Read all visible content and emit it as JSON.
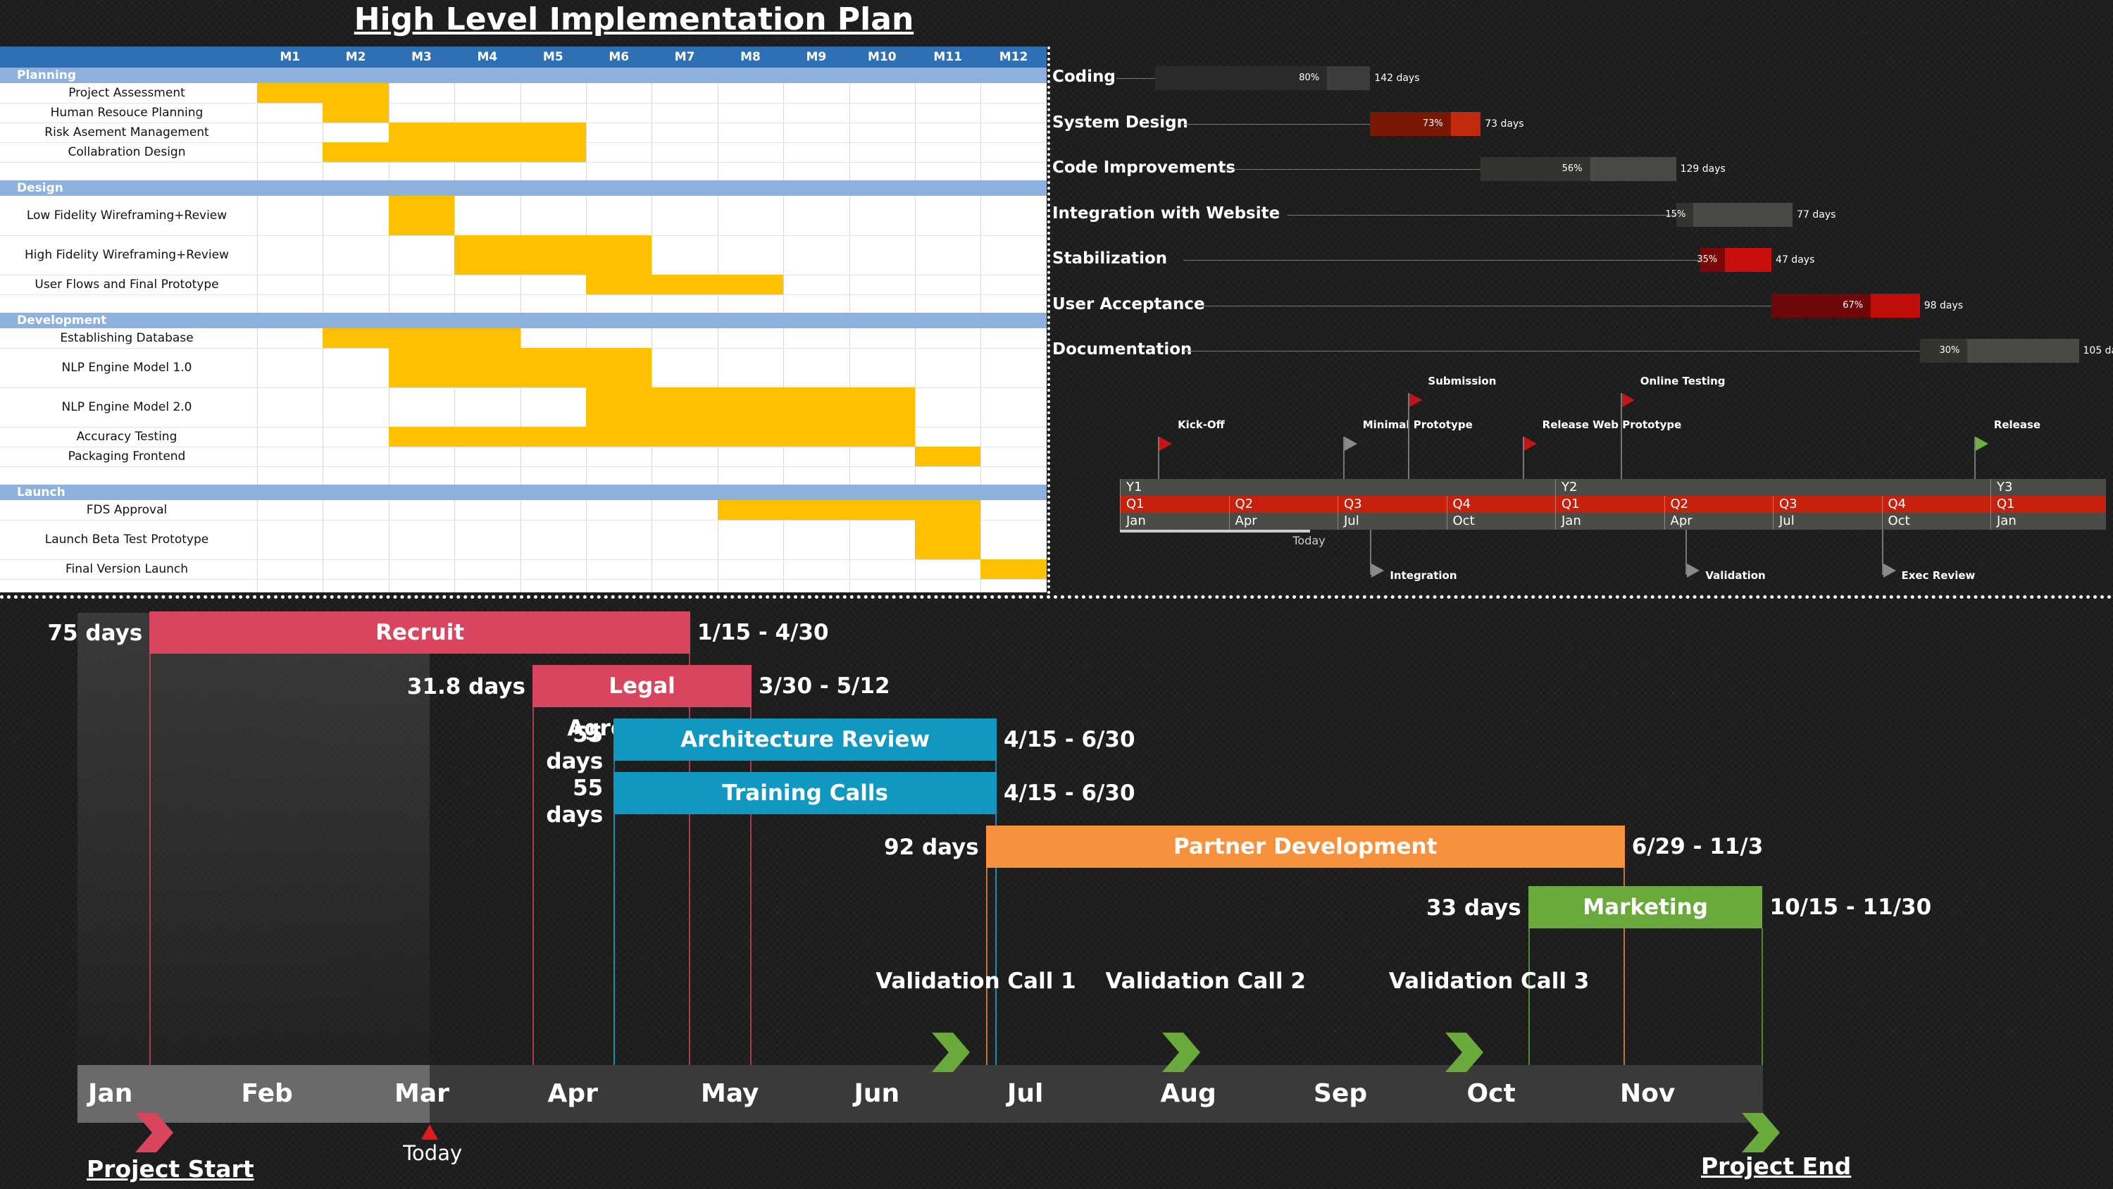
{
  "title": "High Level Implementation Plan",
  "chart_data": [
    {
      "type": "table",
      "chart": "monthly-gantt-table",
      "months": [
        "M1",
        "M2",
        "M3",
        "M4",
        "M5",
        "M6",
        "M7",
        "M8",
        "M9",
        "M10",
        "M11",
        "M12"
      ],
      "sections": [
        {
          "name": "Planning",
          "tasks": [
            {
              "name": "Project Assessment",
              "start": 1,
              "end": 2
            },
            {
              "name": "Human Resouce Planning",
              "start": 2,
              "end": 2
            },
            {
              "name": "Risk Asement Management",
              "start": 3,
              "end": 5
            },
            {
              "name": "Collabration Design",
              "start": 2,
              "end": 5
            }
          ]
        },
        {
          "name": "Design",
          "tasks": [
            {
              "name": "Low Fidelity Wireframing+Review",
              "start": 3,
              "end": 3
            },
            {
              "name": "High Fidelity Wireframing+Review",
              "start": 4,
              "end": 6
            },
            {
              "name": "User Flows and Final Prototype",
              "start": 6,
              "end": 8
            }
          ]
        },
        {
          "name": "Development",
          "tasks": [
            {
              "name": "Establishing Database",
              "start": 2,
              "end": 4
            },
            {
              "name": "NLP Engine Model 1.0",
              "start": 3,
              "end": 6
            },
            {
              "name": "NLP Engine Model 2.0",
              "start": 6,
              "end": 10
            },
            {
              "name": "Accuracy Testing",
              "start": 3,
              "end": 10
            },
            {
              "name": "Packaging Frontend",
              "start": 11,
              "end": 11
            }
          ]
        },
        {
          "name": "Launch",
          "tasks": [
            {
              "name": "FDS Approval",
              "start": 8,
              "end": 11
            },
            {
              "name": "Launch Beta Test Prototype",
              "start": 11,
              "end": 11
            },
            {
              "name": "Final Version Launch",
              "start": 12,
              "end": 12
            }
          ]
        }
      ]
    },
    {
      "type": "bar",
      "chart": "task-progress",
      "tasks": [
        {
          "name": "Coding",
          "percent": 80,
          "percent_label": "80%",
          "days_label": "142 days",
          "start": 0,
          "days": 142,
          "color": "#3d3d3d",
          "done_color": "#2a2a2a"
        },
        {
          "name": "System Design",
          "percent": 73,
          "percent_label": "73%",
          "days_label": "73 days",
          "start": 142,
          "days": 73,
          "color": "#c22a0e",
          "done_color": "#7a1806"
        },
        {
          "name": "Code Improvements",
          "percent": 56,
          "percent_label": "56%",
          "days_label": "129 days",
          "start": 215,
          "days": 129,
          "color": "#4a4a44",
          "done_color": "#33332f"
        },
        {
          "name": "Integration with Website",
          "percent": 15,
          "percent_label": "15%",
          "days_label": "77 days",
          "start": 344,
          "days": 77,
          "color": "#4a4a44",
          "done_color": "#33332f"
        },
        {
          "name": "Stabilization",
          "percent": 35,
          "percent_label": "35%",
          "days_label": "47 days",
          "start": 360,
          "days": 47,
          "color": "#c80e0e",
          "done_color": "#7a0808"
        },
        {
          "name": "User Acceptance",
          "percent": 67,
          "percent_label": "67%",
          "days_label": "98 days",
          "start": 407,
          "days": 98,
          "color": "#c20d0d",
          "done_color": "#6e0707"
        },
        {
          "name": "Documentation",
          "percent": 30,
          "percent_label": "30%",
          "days_label": "105 days",
          "start": 505,
          "days": 105,
          "color": "#4a4a44",
          "done_color": "#33332f"
        }
      ]
    },
    {
      "type": "table",
      "chart": "milestone-timeline",
      "years": [
        {
          "label": "Y1",
          "start": 0,
          "span": 4
        },
        {
          "label": "Y2",
          "start": 4,
          "span": 4
        },
        {
          "label": "Y3",
          "start": 8,
          "span": 1
        }
      ],
      "quarters": [
        "Q1",
        "Q2",
        "Q3",
        "Q4",
        "Q1",
        "Q2",
        "Q3",
        "Q4",
        "Q1"
      ],
      "months": [
        "Jan",
        "Apr",
        "Jul",
        "Oct",
        "Jan",
        "Apr",
        "Jul",
        "Oct",
        "Jan"
      ],
      "today_label": "Today",
      "today_q": 1.75,
      "milestones_above": [
        {
          "label": "Kick-Off",
          "q": 0.35,
          "height": "low",
          "color": "#c21515"
        },
        {
          "label": "Minimal Prototype",
          "q": 2.05,
          "height": "low",
          "color": "#8a8a8a"
        },
        {
          "label": "Submission",
          "q": 2.65,
          "height": "high",
          "color": "#c21515"
        },
        {
          "label": "Release Web Prototype",
          "q": 3.7,
          "height": "low",
          "color": "#c21515"
        },
        {
          "label": "Online Testing",
          "q": 4.6,
          "height": "high",
          "color": "#c21515"
        },
        {
          "label": "Release",
          "q": 7.85,
          "height": "low",
          "color": "#6db33f"
        }
      ],
      "milestones_below": [
        {
          "label": "Integration",
          "q": 2.3
        },
        {
          "label": "Validation",
          "q": 5.2
        },
        {
          "label": "Exec Review",
          "q": 7.0
        }
      ]
    },
    {
      "type": "bar",
      "chart": "project-gantt",
      "months": [
        "Jan",
        "Feb",
        "Mar",
        "Apr",
        "May",
        "Jun",
        "Jul",
        "Aug",
        "Sep",
        "Oct",
        "Nov"
      ],
      "tasks": [
        {
          "name": "Recruit",
          "start": 0.47,
          "end": 4.0,
          "days_label": "75 days",
          "dates": "1/15 - 4/30",
          "color": "#d9455f"
        },
        {
          "name": "Legal Agreements",
          "start": 2.97,
          "end": 4.4,
          "days_label": "31.8 days",
          "dates": "3/30 - 5/12",
          "color": "#d9455f"
        },
        {
          "name": "Architecture Review",
          "start": 3.5,
          "end": 6.0,
          "days_label": "55 days",
          "dates": "4/15 - 6/30",
          "color": "#1198c0"
        },
        {
          "name": "Training Calls",
          "start": 3.5,
          "end": 6.0,
          "days_label": "55 days",
          "dates": "4/15 - 6/30",
          "color": "#1198c0"
        },
        {
          "name": "Partner Development",
          "start": 5.93,
          "end": 10.1,
          "days_label": "92 days",
          "dates": "6/29 - 11/3",
          "color": "#f7913d"
        },
        {
          "name": "Marketing",
          "start": 9.47,
          "end": 11.0,
          "days_label": "33 days",
          "dates": "10/15 - 11/30",
          "color": "#6aaa3c"
        }
      ],
      "validation_calls": [
        {
          "label": "Validation Call 1",
          "month": 5.9
        },
        {
          "label": "Validation Call 2",
          "month": 7.4
        },
        {
          "label": "Validation Call 3",
          "month": 9.25
        }
      ],
      "today_label": "Today",
      "today_month": 2.3,
      "project_start_label": "Project Start",
      "project_end_label": "Project End"
    }
  ]
}
